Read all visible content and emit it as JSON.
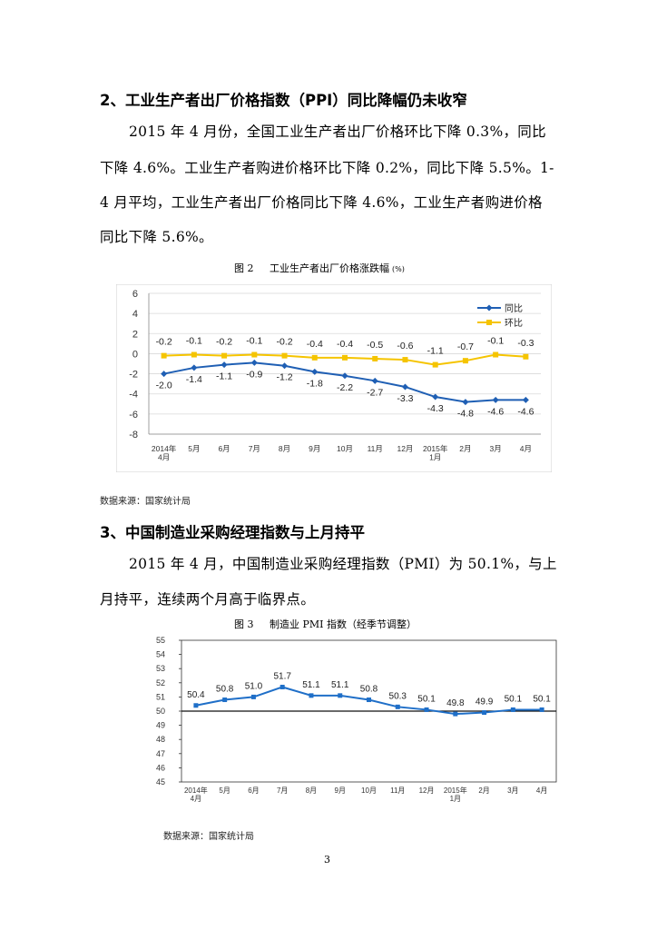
{
  "sections": [
    {
      "heading": "2、工业生产者出厂价格指数（PPI）同比降幅仍未收窄",
      "paragraph_lines": [
        "2015 年 4 月份，全国工业生产者出厂价格环比下降 0.3%，同比",
        "下降 4.6%。工业生产者购进价格环比下降 0.2%，同比下降 5.5%。1-",
        "4 月平均，工业生产者出厂价格同比下降 4.6%，工业生产者购进价格",
        "同比下降 5.6%。"
      ],
      "figure_caption": "图 2     工业生产者出厂价格涨跌幅",
      "figure_unit": "(%)",
      "source": "数据来源：国家统计局"
    },
    {
      "heading": "3、中国制造业采购经理指数与上月持平",
      "paragraph_lines": [
        "2015 年 4 月，中国制造业采购经理指数（PMI）为 50.1%，与上",
        "月持平，连续两个月高于临界点。"
      ],
      "figure_caption": "图 3     制造业 PMI 指数（经季节调整）",
      "source": "数据来源：国家统计局"
    }
  ],
  "page_number": "3",
  "chart_data": [
    {
      "type": "line",
      "title": "工业生产者出厂价格涨跌幅",
      "unit": "%",
      "categories": [
        "2014年\n4月",
        "5月",
        "6月",
        "7月",
        "8月",
        "9月",
        "10月",
        "11月",
        "12月",
        "2015年\n1月",
        "2月",
        "3月",
        "4月"
      ],
      "series": [
        {
          "name": "同比",
          "color": "#1f5fb4",
          "marker": "diamond",
          "values": [
            -2.0,
            -1.4,
            -1.1,
            -0.9,
            -1.2,
            -1.8,
            -2.2,
            -2.7,
            -3.3,
            -4.3,
            -4.8,
            -4.6,
            -4.6
          ]
        },
        {
          "name": "环比",
          "color": "#f5c400",
          "marker": "square",
          "values": [
            -0.2,
            -0.1,
            -0.2,
            -0.1,
            -0.2,
            -0.4,
            -0.4,
            -0.5,
            -0.6,
            -1.1,
            -0.7,
            -0.1,
            -0.3
          ]
        }
      ],
      "ylim": [
        -8,
        6
      ],
      "yticks": [
        -8,
        -6,
        -4,
        -2,
        0,
        2,
        4,
        6
      ],
      "legend": "top-right",
      "grid": true
    },
    {
      "type": "line",
      "title": "制造业 PMI 指数（经季节调整）",
      "categories": [
        "2014年\n4月",
        "5月",
        "6月",
        "7月",
        "8月",
        "9月",
        "10月",
        "11月",
        "12月",
        "2015年\n1月",
        "2月",
        "3月",
        "4月"
      ],
      "series": [
        {
          "name": "PMI",
          "color": "#1f6fc8",
          "marker": "square",
          "values": [
            50.4,
            50.8,
            51.0,
            51.7,
            51.1,
            51.1,
            50.8,
            50.3,
            50.1,
            49.8,
            49.9,
            50.1,
            50.1
          ]
        }
      ],
      "ylim": [
        45,
        55
      ],
      "yticks": [
        45,
        46,
        47,
        48,
        49,
        50,
        51,
        52,
        53,
        54,
        55
      ],
      "reference_line": 50,
      "grid": false
    }
  ]
}
